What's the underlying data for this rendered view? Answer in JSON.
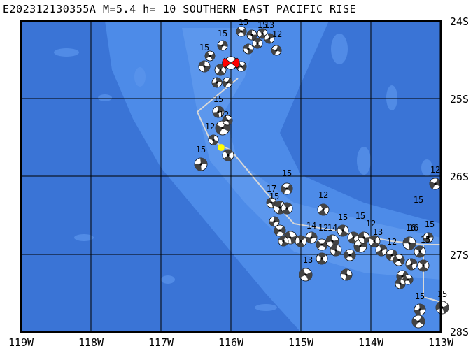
{
  "title": "E202312130355A M=5.4 h= 10 SOUTHERN EAST PACIFIC RISE",
  "map": {
    "lat_labels": [
      "24S",
      "25S",
      "26S",
      "27S",
      "28S"
    ],
    "lon_labels": [
      "119W",
      "118W",
      "117W",
      "116W",
      "115W",
      "114W",
      "113W"
    ],
    "colors": {
      "ocean_deep": "#3a74d6",
      "ocean_shallow": "#4d8be8",
      "ridge": "#6aa2f0",
      "plate_boundary": "#d8d8d8",
      "grid": "#000000",
      "event_mechanism": "#ff0000",
      "event_marker": "#ffff00"
    },
    "event": {
      "name": "E202312130355A",
      "magnitude": 5.4,
      "depth_km": 10,
      "region": "SOUTHERN EAST PACIFIC RISE"
    },
    "depth_labels": [
      "15",
      "15",
      "15",
      "15",
      "13",
      "12",
      "15",
      "12",
      "12",
      "15",
      "17",
      "15",
      "15",
      "14",
      "12",
      "15",
      "15",
      "12",
      "13",
      "12",
      "15",
      "16",
      "15",
      "15",
      "12",
      "13",
      "14",
      "12",
      "16",
      "15",
      "15"
    ]
  }
}
